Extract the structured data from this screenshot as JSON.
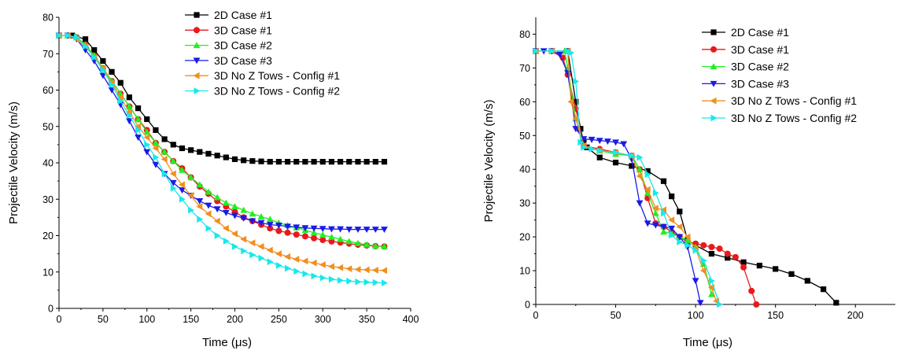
{
  "chart_data": [
    {
      "type": "line",
      "xlabel": "Time (μs)",
      "ylabel": "Projectile Velocity (m/s)",
      "xlim": [
        0,
        400
      ],
      "ylim": [
        0,
        80
      ],
      "xticks": [
        "0",
        "50",
        "100",
        "150",
        "200",
        "250",
        "300",
        "350",
        "400"
      ],
      "yticks": [
        "0",
        "10",
        "20",
        "30",
        "40",
        "50",
        "60",
        "70",
        "80"
      ],
      "legend_position": "top-right",
      "series": [
        {
          "name": "2D Case #1",
          "color": "#000000",
          "marker": "square",
          "x": [
            0,
            15,
            30,
            40,
            50,
            60,
            70,
            80,
            90,
            100,
            110,
            120,
            130,
            140,
            150,
            160,
            170,
            180,
            190,
            200,
            210,
            220,
            230,
            240,
            250,
            260,
            270,
            280,
            290,
            300,
            310,
            320,
            330,
            340,
            350,
            360,
            370
          ],
          "y": [
            75,
            75,
            74,
            71,
            68,
            65,
            62,
            58,
            55,
            52,
            49,
            46.5,
            45,
            44,
            43.5,
            43,
            42.5,
            42,
            41.5,
            41,
            40.7,
            40.5,
            40.4,
            40.3,
            40.3,
            40.3,
            40.3,
            40.3,
            40.3,
            40.3,
            40.3,
            40.3,
            40.3,
            40.3,
            40.3,
            40.3,
            40.3
          ]
        },
        {
          "name": "3D Case #1",
          "color": "#e8191c",
          "marker": "circle",
          "x": [
            0,
            10,
            20,
            30,
            40,
            50,
            60,
            70,
            80,
            90,
            100,
            110,
            120,
            130,
            140,
            150,
            160,
            170,
            180,
            190,
            200,
            210,
            220,
            230,
            240,
            250,
            260,
            270,
            280,
            290,
            300,
            310,
            320,
            330,
            340,
            350,
            360,
            370
          ],
          "y": [
            75,
            75,
            74.5,
            72.5,
            69.5,
            66,
            62.5,
            59,
            55.5,
            52,
            49,
            45.5,
            43,
            40.5,
            38.5,
            36,
            33.5,
            31.5,
            29.5,
            28,
            26.5,
            25,
            24,
            23,
            22,
            21.3,
            20.8,
            20.3,
            19.8,
            19.3,
            18.8,
            18.4,
            18.1,
            17.8,
            17.5,
            17.3,
            17.1,
            17
          ]
        },
        {
          "name": "3D Case #2",
          "color": "#22ee22",
          "marker": "triangle-up",
          "x": [
            0,
            10,
            20,
            30,
            40,
            50,
            60,
            70,
            80,
            90,
            100,
            110,
            120,
            130,
            140,
            150,
            160,
            170,
            180,
            190,
            200,
            210,
            220,
            230,
            240,
            250,
            260,
            270,
            280,
            290,
            300,
            310,
            320,
            330,
            340,
            350,
            360,
            370
          ],
          "y": [
            75,
            75,
            74.5,
            72.5,
            69.5,
            66,
            62.5,
            59,
            55.5,
            52,
            48.5,
            45.5,
            43,
            40.5,
            38,
            36,
            34,
            32,
            30.5,
            29,
            28,
            27,
            26,
            25.2,
            24.5,
            23.5,
            22.8,
            22.2,
            21.5,
            20.8,
            20.2,
            19.6,
            19,
            18.4,
            17.9,
            17.5,
            17.2,
            17
          ]
        },
        {
          "name": "3D Case #3",
          "color": "#1a1ae6",
          "marker": "triangle-down",
          "x": [
            0,
            10,
            20,
            30,
            40,
            50,
            60,
            70,
            80,
            90,
            100,
            110,
            120,
            130,
            140,
            150,
            160,
            170,
            180,
            190,
            200,
            210,
            220,
            230,
            240,
            250,
            260,
            270,
            280,
            290,
            300,
            310,
            320,
            330,
            340,
            350,
            360,
            370
          ],
          "y": [
            75,
            75,
            74,
            71,
            68,
            64,
            60,
            56,
            51.5,
            47,
            43,
            39.5,
            37,
            34.5,
            32.5,
            31,
            29.5,
            28.3,
            27.3,
            26.3,
            25.5,
            24.8,
            24,
            23.5,
            23,
            22.8,
            22.5,
            22.3,
            22.1,
            22,
            21.9,
            21.8,
            21.8,
            21.7,
            21.7,
            21.7,
            21.7,
            21.7
          ]
        },
        {
          "name": "3D No Z Tows - Config #1",
          "color": "#f28e1e",
          "marker": "triangle-left",
          "x": [
            0,
            10,
            20,
            30,
            40,
            50,
            60,
            70,
            80,
            90,
            100,
            110,
            120,
            130,
            140,
            150,
            160,
            170,
            180,
            190,
            200,
            210,
            220,
            230,
            240,
            250,
            260,
            270,
            280,
            290,
            300,
            310,
            320,
            330,
            340,
            350,
            360,
            370
          ],
          "y": [
            75,
            75,
            74,
            72,
            69,
            66,
            62,
            58,
            54,
            50,
            47,
            44,
            41,
            37,
            34,
            31,
            28,
            26,
            24,
            22,
            20.5,
            19,
            18,
            17,
            16,
            15,
            14.2,
            13.5,
            13,
            12.5,
            12,
            11.5,
            11.2,
            10.9,
            10.7,
            10.6,
            10.5,
            10.4
          ]
        },
        {
          "name": "3D No Z Tows - Config #2",
          "color": "#18e8ea",
          "marker": "triangle-right",
          "x": [
            0,
            10,
            20,
            30,
            40,
            50,
            60,
            70,
            80,
            90,
            100,
            110,
            120,
            130,
            140,
            150,
            160,
            170,
            180,
            190,
            200,
            210,
            220,
            230,
            240,
            250,
            260,
            270,
            280,
            290,
            300,
            310,
            320,
            330,
            340,
            350,
            360,
            370
          ],
          "y": [
            75,
            75,
            74.5,
            72,
            69,
            65.5,
            61.5,
            57,
            53,
            49,
            45,
            41.5,
            37,
            33,
            30,
            27,
            24.5,
            22,
            20,
            18.5,
            17,
            15.8,
            14.7,
            13.8,
            12.8,
            11.8,
            11,
            10.2,
            9.5,
            8.9,
            8.4,
            8,
            7.7,
            7.5,
            7.3,
            7.2,
            7.1,
            7
          ]
        }
      ]
    },
    {
      "type": "line",
      "xlabel": "Time (μs)",
      "ylabel": "Projectile Velocity (m/s)",
      "xlim": [
        0,
        225
      ],
      "ylim": [
        0,
        85
      ],
      "xticks": [
        "0",
        "50",
        "100",
        "150",
        "200"
      ],
      "yticks": [
        "0",
        "10",
        "20",
        "30",
        "40",
        "50",
        "60",
        "70",
        "80"
      ],
      "legend_position": "top-right",
      "series": [
        {
          "name": "2D Case #1",
          "color": "#000000",
          "marker": "square",
          "x": [
            0,
            10,
            20,
            25,
            28,
            30,
            32,
            40,
            50,
            60,
            70,
            80,
            85,
            90,
            95,
            100,
            110,
            120,
            130,
            140,
            150,
            160,
            170,
            180,
            188
          ],
          "y": [
            75,
            75,
            75,
            60,
            52,
            48,
            46.5,
            43.5,
            42,
            41,
            39.5,
            36.5,
            32,
            27.5,
            19,
            17.5,
            15,
            13.8,
            12.5,
            11.5,
            10.5,
            9,
            7,
            4.5,
            0.5
          ]
        },
        {
          "name": "3D Case #1",
          "color": "#e8191c",
          "marker": "circle",
          "x": [
            0,
            10,
            17,
            20,
            25,
            30,
            40,
            50,
            60,
            65,
            70,
            75,
            80,
            85,
            90,
            95,
            100,
            105,
            110,
            115,
            120,
            125,
            130,
            135,
            138
          ],
          "y": [
            75,
            75,
            73,
            68,
            58,
            47,
            46,
            45,
            44,
            40,
            31.5,
            24,
            23,
            21.5,
            20,
            18.5,
            18,
            17.5,
            17,
            16.5,
            15,
            14,
            11,
            4,
            0
          ]
        },
        {
          "name": "3D Case #2",
          "color": "#22ee22",
          "marker": "triangle-up",
          "x": [
            0,
            10,
            18,
            20,
            25,
            30,
            40,
            50,
            60,
            65,
            70,
            75,
            80,
            85,
            90,
            95,
            100,
            105,
            110
          ],
          "y": [
            75,
            75,
            75,
            70,
            55,
            47,
            45.5,
            44.5,
            44,
            40,
            33,
            27,
            21.5,
            21,
            20,
            19,
            17,
            12,
            3
          ]
        },
        {
          "name": "3D Case #3",
          "color": "#1a1ae6",
          "marker": "triangle-down",
          "x": [
            0,
            5,
            10,
            15,
            20,
            25,
            30,
            35,
            40,
            45,
            50,
            55,
            60,
            65,
            70,
            75,
            80,
            85,
            90,
            95,
            100,
            103
          ],
          "y": [
            75,
            75,
            75,
            74,
            68.5,
            52,
            49,
            48.8,
            48.5,
            48.3,
            48,
            47.5,
            43,
            30,
            24,
            23.5,
            23,
            22.5,
            20,
            17,
            7,
            0.5
          ]
        },
        {
          "name": "3D No Z Tows - Config #1",
          "color": "#f28e1e",
          "marker": "triangle-left",
          "x": [
            0,
            10,
            20,
            22,
            25,
            30,
            40,
            50,
            60,
            65,
            70,
            75,
            80,
            85,
            90,
            95,
            100,
            105,
            110,
            113
          ],
          "y": [
            75,
            75,
            75,
            60,
            55,
            47,
            45.5,
            45,
            44,
            38,
            34,
            28.5,
            28,
            25,
            23,
            20,
            16.5,
            10,
            5,
            1
          ]
        },
        {
          "name": "3D No Z Tows - Config #2",
          "color": "#18e8ea",
          "marker": "triangle-right",
          "x": [
            0,
            10,
            20,
            22,
            25,
            28,
            30,
            35,
            40,
            50,
            60,
            65,
            70,
            75,
            80,
            85,
            90,
            95,
            100,
            105,
            110,
            115
          ],
          "y": [
            75,
            75,
            75,
            74.5,
            66,
            48,
            46.5,
            46,
            45.5,
            45,
            44,
            43.5,
            38.5,
            33,
            27,
            20.5,
            18.5,
            17.5,
            16,
            13,
            7,
            0
          ]
        }
      ]
    }
  ]
}
